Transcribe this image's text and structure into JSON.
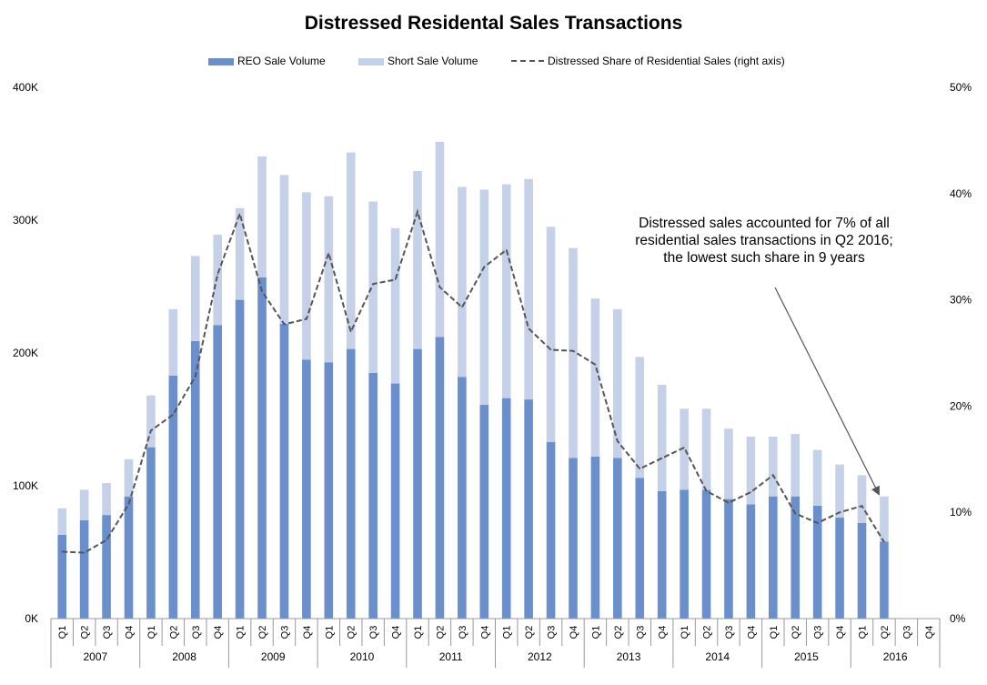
{
  "chart_data": {
    "type": "bar",
    "stacked": true,
    "title": "Distressed Residental Sales Transactions",
    "legend": [
      {
        "key": "reo",
        "label": "REO Sale Volume",
        "color": "#6a8fcb"
      },
      {
        "key": "short",
        "label": "Short Sale Volume",
        "color": "#c5d1e8"
      },
      {
        "key": "share",
        "label": "Distressed Share of Residential Sales (right axis)",
        "color": "#555555"
      }
    ],
    "left_axis": {
      "range": [
        0,
        400000
      ],
      "ticks": [
        "0K",
        "100K",
        "200K",
        "300K",
        "400K"
      ]
    },
    "right_axis": {
      "range": [
        0,
        50
      ],
      "ticks": [
        "0%",
        "10%",
        "20%",
        "30%",
        "40%",
        "50%"
      ]
    },
    "quarters": [
      "Q1",
      "Q2",
      "Q3",
      "Q4"
    ],
    "years": [
      "2007",
      "2008",
      "2009",
      "2010",
      "2011",
      "2012",
      "2013",
      "2014",
      "2015",
      "2016"
    ],
    "series": [
      {
        "name": "REO Sale Volume",
        "values": [
          63000,
          74000,
          78000,
          92000,
          129000,
          183000,
          209000,
          221000,
          240000,
          257000,
          222000,
          195000,
          193000,
          203000,
          185000,
          177000,
          203000,
          212000,
          182000,
          161000,
          166000,
          165000,
          133000,
          121000,
          122000,
          121000,
          106000,
          96000,
          97000,
          97000,
          90000,
          86000,
          92000,
          92000,
          85000,
          76000,
          72000,
          58000,
          null,
          null
        ]
      },
      {
        "name": "Short Sale Volume",
        "values": [
          20000,
          23000,
          24000,
          28000,
          39000,
          50000,
          64000,
          68000,
          69000,
          91000,
          112000,
          126000,
          125000,
          148000,
          129000,
          117000,
          134000,
          147000,
          143000,
          162000,
          161000,
          166000,
          162000,
          158000,
          119000,
          112000,
          91000,
          80000,
          61000,
          61000,
          53000,
          51000,
          45000,
          47000,
          42000,
          40000,
          36000,
          34000,
          null,
          null
        ]
      },
      {
        "name": "Distressed Share of Residential Sales (right axis)",
        "values": [
          6.3,
          6.2,
          7.4,
          10.8,
          17.7,
          19.2,
          22.8,
          32.4,
          38.1,
          30.8,
          27.7,
          28.2,
          34.4,
          27.0,
          31.5,
          31.9,
          38.3,
          31.2,
          29.3,
          33.1,
          34.7,
          27.3,
          25.3,
          25.2,
          23.9,
          16.7,
          14.1,
          15.1,
          16.1,
          12.0,
          10.9,
          11.9,
          13.5,
          9.9,
          9.0,
          10.0,
          10.6,
          7.2,
          null,
          null
        ]
      }
    ],
    "annotation": {
      "lines": [
        "Distressed sales accounted for 7% of all",
        "residential sales transactions in Q2 2016;",
        "the lowest such share in 9 years"
      ]
    },
    "grid": false
  }
}
